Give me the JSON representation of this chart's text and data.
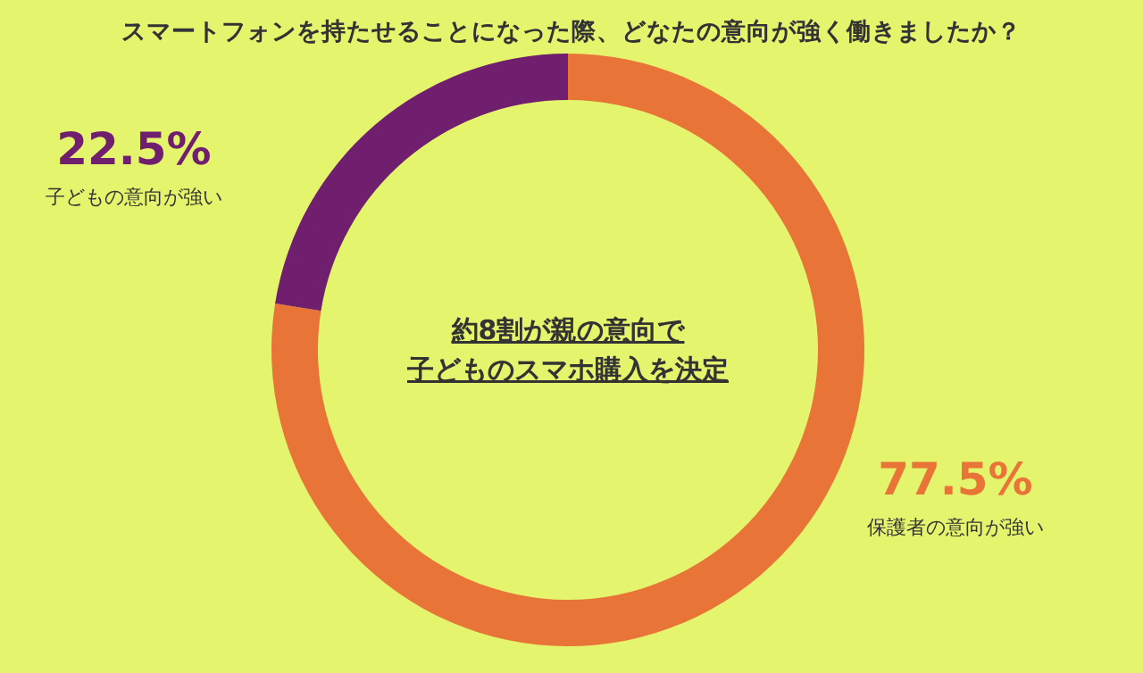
{
  "chart_data": {
    "type": "donut",
    "title": "スマートフォンを持たせることになった際、どなたの意向が強く働きましたか？",
    "categories": [
      "保護者の意向が強い",
      "子どもの意向が強い"
    ],
    "values": [
      77.5,
      22.5
    ],
    "value_labels": [
      "77.5%",
      "22.5%"
    ],
    "colors": [
      "#e97437",
      "#701f6e"
    ],
    "annotations": [
      "約8割が親の意向で",
      "子どものスマホ購入を決定"
    ]
  }
}
